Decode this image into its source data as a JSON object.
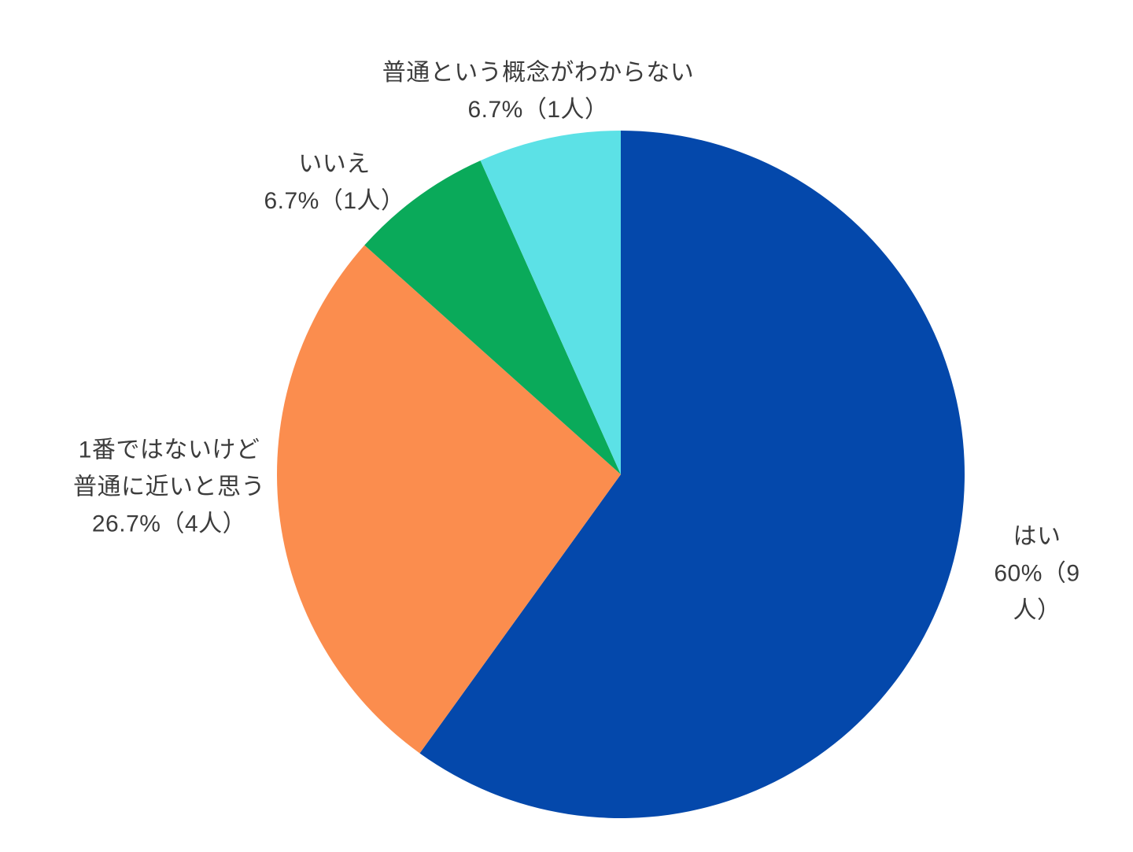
{
  "chart_data": {
    "type": "pie",
    "title": "",
    "legend_position": "none",
    "start_angle_deg": -90,
    "direction": "clockwise",
    "categories": [
      "はい",
      "1番ではないけど普通に近いと思う",
      "いいえ",
      "普通という概念がわからない"
    ],
    "values": [
      60,
      26.7,
      6.7,
      6.7
    ],
    "counts": [
      9,
      4,
      1,
      1
    ],
    "colors": [
      "#0448ab",
      "#fb8d4e",
      "#0aaa5a",
      "#5ce1e6"
    ],
    "labels": {
      "yes": "はい\n60%（9人）",
      "close": "1番ではないけど\n普通に近いと思う\n26.7%（4人）",
      "no": "いいえ\n6.7%（1人）",
      "unknown": "普通という概念がわからない\n6.7%（1人）"
    },
    "text_color": "#3c3c3c",
    "background_color": "#ffffff"
  }
}
